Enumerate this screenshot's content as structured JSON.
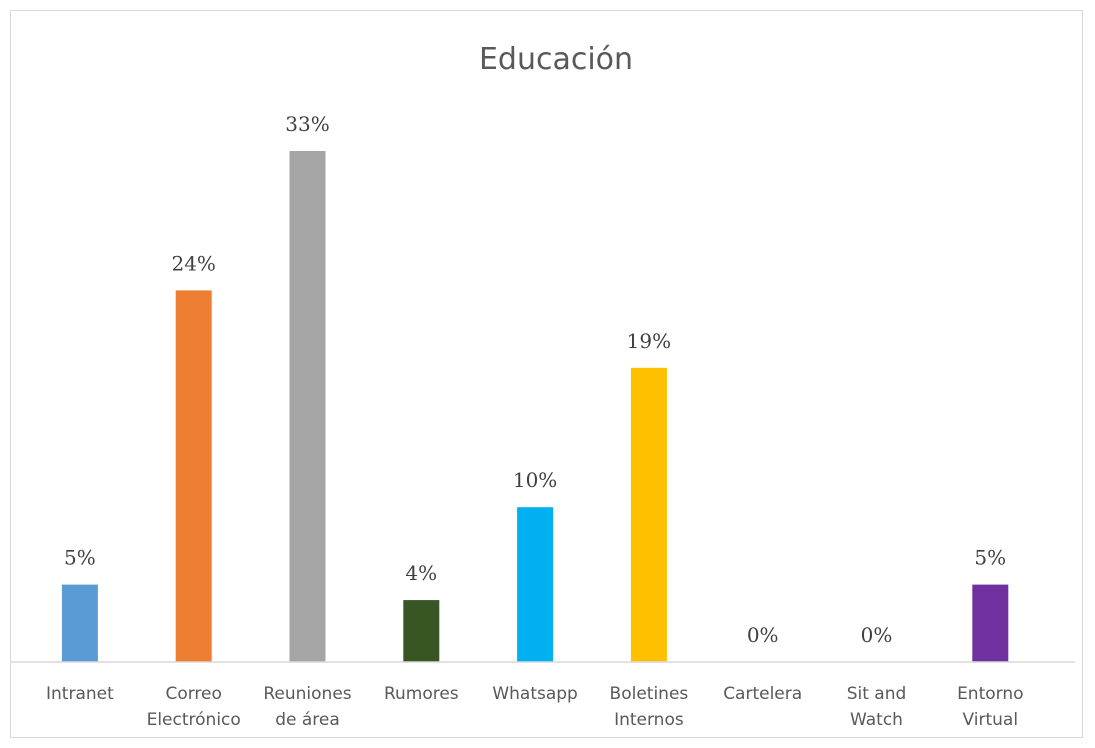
{
  "chart_data": {
    "type": "bar",
    "title": "Educación",
    "categories": [
      [
        "Intranet"
      ],
      [
        "Correo",
        "Electrónico"
      ],
      [
        "Reuniones",
        "de área"
      ],
      [
        "Rumores"
      ],
      [
        "Whatsapp"
      ],
      [
        "Boletines",
        "Internos"
      ],
      [
        "Cartelera"
      ],
      [
        "Sit and",
        "Watch"
      ],
      [
        "Entorno",
        "Virtual"
      ]
    ],
    "values": [
      5,
      24,
      33,
      4,
      10,
      19,
      0,
      0,
      5
    ],
    "data_labels": [
      "5%",
      "24%",
      "33%",
      "4%",
      "10%",
      "19%",
      "0%",
      "0%",
      "5%"
    ],
    "colors": [
      "#5b9bd5",
      "#ed7d31",
      "#a5a5a5",
      "#375623",
      "#00b0f0",
      "#ffc000",
      "#a9d18e",
      "#8faadc",
      "#7030a0"
    ],
    "xlabel": "",
    "ylabel": "",
    "ylim": [
      0,
      33
    ],
    "grid": false,
    "legend": "none"
  }
}
